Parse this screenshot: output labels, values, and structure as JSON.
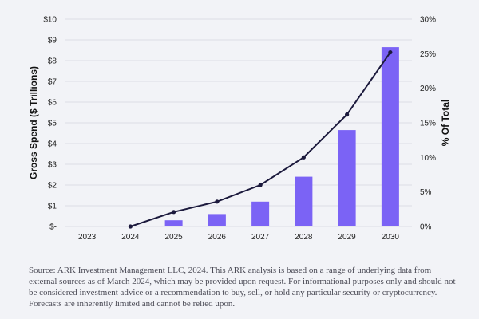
{
  "chart_data": {
    "type": "bar",
    "categories": [
      "2023",
      "2024",
      "2025",
      "2026",
      "2027",
      "2028",
      "2029",
      "2030"
    ],
    "series": [
      {
        "type": "bar",
        "axis": "left",
        "values": [
          0,
          0,
          0.3,
          0.6,
          1.2,
          2.4,
          4.65,
          8.65
        ]
      },
      {
        "type": "line",
        "axis": "right",
        "values": [
          null,
          0,
          2.1,
          3.6,
          6.0,
          10.0,
          16.2,
          25.2
        ]
      }
    ],
    "ylabel": "Gross Spend ($ Trillions)",
    "ylabel_right": "% Of Total",
    "ylim": [
      0,
      10
    ],
    "ylim_right": [
      0,
      30
    ],
    "yticks": [
      "$-",
      "$1",
      "$2",
      "$3",
      "$4",
      "$5",
      "$6",
      "$7",
      "$8",
      "$9",
      "$10"
    ],
    "yticks_right": [
      "0%",
      "5%",
      "10%",
      "15%",
      "20%",
      "25%",
      "30%"
    ],
    "grid": true,
    "colors": {
      "bar": "#7b63f5",
      "line": "#1c1a3d",
      "grid": "#dcdde4",
      "background": "#f2f3f7"
    }
  },
  "footnote": "Source: ARK Investment Management LLC, 2024. This ARK analysis is based on a range of underlying data from external sources as of March 2024, which may be provided upon request. For informational purposes only and should not be considered investment advice or a recommendation to buy, sell, or hold any particular security or cryptocurrency. Forecasts are inherently limited and cannot be relied upon."
}
